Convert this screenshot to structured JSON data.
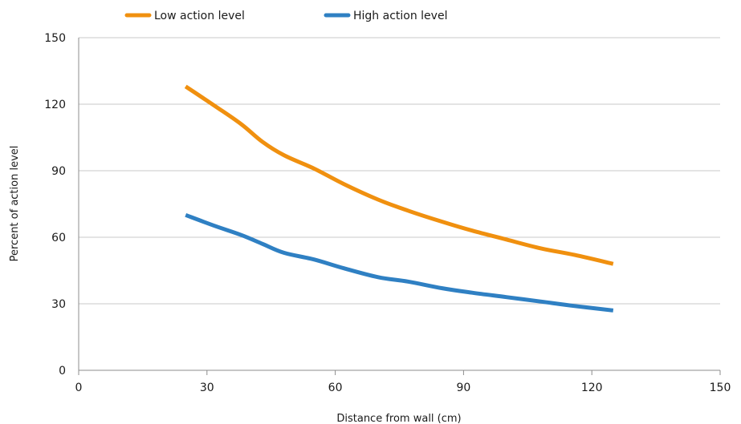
{
  "chart_data": {
    "type": "line",
    "title": "",
    "xlabel": "Distance from wall (cm)",
    "ylabel": "Percent of action level",
    "xlim": [
      0,
      150
    ],
    "ylim": [
      0,
      150
    ],
    "x_ticks": [
      0,
      30,
      60,
      90,
      120,
      150
    ],
    "y_ticks": [
      0,
      30,
      60,
      90,
      120,
      150
    ],
    "grid": "horizontal",
    "legend_position": "top-left",
    "series": [
      {
        "name": "Low action level",
        "color": "#f0900f",
        "x": [
          25,
          32,
          38,
          43,
          48,
          55,
          62,
          70,
          77,
          85,
          92,
          100,
          108,
          116,
          125
        ],
        "y": [
          128,
          119,
          111,
          103,
          97,
          91,
          84,
          77,
          72,
          67,
          63,
          59,
          55,
          52,
          48
        ]
      },
      {
        "name": "High action level",
        "color": "#2f80c3",
        "x": [
          25,
          32,
          38,
          43,
          48,
          55,
          62,
          70,
          77,
          85,
          92,
          100,
          108,
          116,
          125
        ],
        "y": [
          70,
          65,
          61,
          57,
          53,
          50,
          46,
          42,
          40,
          37,
          35,
          33,
          31,
          29,
          27
        ]
      }
    ]
  }
}
